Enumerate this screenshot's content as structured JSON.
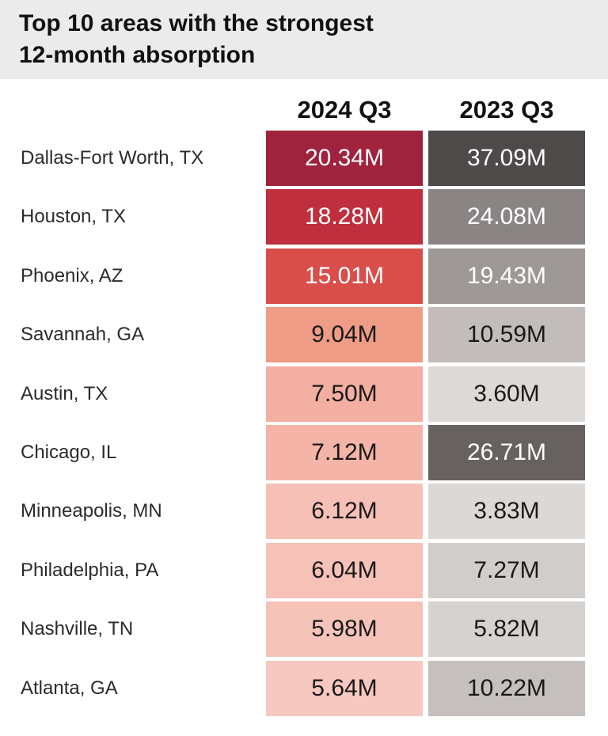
{
  "header": {
    "title": "Top 10 areas with the strongest\n12-month absorption"
  },
  "chart_data": {
    "type": "table",
    "columns": [
      "2024 Q3",
      "2023 Q3"
    ],
    "unit": "M",
    "rows": [
      {
        "label": "Dallas-Fort Worth, TX",
        "values": [
          20.34,
          37.09
        ],
        "display": [
          "20.34M",
          "37.09M"
        ],
        "colors": [
          "#a0233e",
          "#4e4a49"
        ],
        "text_colors": [
          "#ffffff",
          "#ffffff"
        ]
      },
      {
        "label": "Houston, TX",
        "values": [
          18.28,
          24.08
        ],
        "display": [
          "18.28M",
          "24.08M"
        ],
        "colors": [
          "#bf2f3e",
          "#8a8584"
        ],
        "text_colors": [
          "#ffffff",
          "#ffffff"
        ]
      },
      {
        "label": "Phoenix, AZ",
        "values": [
          15.01,
          19.43
        ],
        "display": [
          "15.01M",
          "19.43M"
        ],
        "colors": [
          "#d84e4a",
          "#9e9997"
        ],
        "text_colors": [
          "#ffffff",
          "#ffffff"
        ]
      },
      {
        "label": "Savannah, GA",
        "values": [
          9.04,
          10.59
        ],
        "display": [
          "9.04M",
          "10.59M"
        ],
        "colors": [
          "#ee9c86",
          "#c2bdba"
        ],
        "text_colors": [
          "#1a1a1a",
          "#1a1a1a"
        ]
      },
      {
        "label": "Austin, TX",
        "values": [
          7.5,
          3.6
        ],
        "display": [
          "7.50M",
          "3.60M"
        ],
        "colors": [
          "#f3afa1",
          "#ddd9d6"
        ],
        "text_colors": [
          "#1a1a1a",
          "#1a1a1a"
        ]
      },
      {
        "label": "Chicago, IL",
        "values": [
          7.12,
          26.71
        ],
        "display": [
          "7.12M",
          "26.71M"
        ],
        "colors": [
          "#f4b4a7",
          "#67625f"
        ],
        "text_colors": [
          "#1a1a1a",
          "#ffffff"
        ]
      },
      {
        "label": "Minneapolis, MN",
        "values": [
          6.12,
          3.83
        ],
        "display": [
          "6.12M",
          "3.83M"
        ],
        "colors": [
          "#f6c0b6",
          "#dcd8d5"
        ],
        "text_colors": [
          "#1a1a1a",
          "#1a1a1a"
        ]
      },
      {
        "label": "Philadelphia, PA",
        "values": [
          6.04,
          7.27
        ],
        "display": [
          "6.04M",
          "7.27M"
        ],
        "colors": [
          "#f6c1b7",
          "#d1cdca"
        ],
        "text_colors": [
          "#1a1a1a",
          "#1a1a1a"
        ]
      },
      {
        "label": "Nashville, TN",
        "values": [
          5.98,
          5.82
        ],
        "display": [
          "5.98M",
          "5.82M"
        ],
        "colors": [
          "#f6c3b9",
          "#d6d2cf"
        ],
        "text_colors": [
          "#1a1a1a",
          "#1a1a1a"
        ]
      },
      {
        "label": "Atlanta, GA",
        "values": [
          5.64,
          10.22
        ],
        "display": [
          "5.64M",
          "10.22M"
        ],
        "colors": [
          "#f7c8bf",
          "#c5c0bd"
        ],
        "text_colors": [
          "#1a1a1a",
          "#1a1a1a"
        ]
      }
    ]
  }
}
